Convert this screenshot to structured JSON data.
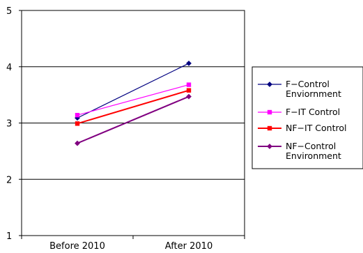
{
  "chart_data": {
    "type": "line",
    "categories": [
      "Before 2010",
      "After 2010"
    ],
    "ylim": [
      1,
      5
    ],
    "yticks": [
      "1",
      "2",
      "3",
      "4",
      "5"
    ],
    "grid": true,
    "legend_position": "right",
    "series": [
      {
        "name": "F-Control Enviornment",
        "name_lines": [
          "F−Control",
          "Enviornment"
        ],
        "values": [
          3.09,
          4.06
        ],
        "color": "#000080",
        "marker": "diamond"
      },
      {
        "name": "F-IT Control",
        "name_lines": [
          "F−IT Control"
        ],
        "values": [
          3.14,
          3.68
        ],
        "color": "#ff00ff",
        "marker": "square"
      },
      {
        "name": "NF-IT Control",
        "name_lines": [
          "NF−IT Control"
        ],
        "values": [
          2.99,
          3.58
        ],
        "color": "#ff0000",
        "marker": "square"
      },
      {
        "name": "NF-Control Environment",
        "name_lines": [
          "NF−Control",
          "Environment"
        ],
        "values": [
          2.64,
          3.47
        ],
        "color": "#800080",
        "marker": "diamond"
      }
    ]
  }
}
